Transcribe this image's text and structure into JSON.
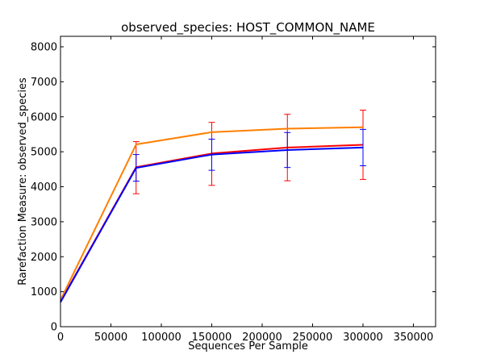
{
  "chart_data": {
    "type": "line",
    "title": "observed_species: HOST_COMMON_NAME",
    "xlabel": "Sequences Per Sample",
    "ylabel": "Rarefaction Measure: observed_species",
    "xlim": [
      0,
      372000
    ],
    "ylim": [
      0,
      8300
    ],
    "xticks": [
      0,
      50000,
      100000,
      150000,
      200000,
      250000,
      300000,
      350000
    ],
    "yticks": [
      0,
      1000,
      2000,
      3000,
      4000,
      5000,
      6000,
      7000,
      8000
    ],
    "grid": false,
    "legend": "none",
    "series": [
      {
        "color": "#ff0000",
        "errorbar_color": "#ff0000",
        "x": [
          1,
          75000,
          150000,
          225000,
          300000
        ],
        "y": [
          720,
          4560,
          4950,
          5120,
          5200
        ],
        "yerr_low": [
          720,
          3800,
          4040,
          4170,
          4210
        ],
        "yerr_high": [
          720,
          5290,
          5840,
          6070,
          6190
        ]
      },
      {
        "color": "#ff7f00",
        "errorbar_color": "#ff7f00",
        "x": [
          1,
          75000,
          150000,
          225000,
          300000
        ],
        "y": [
          760,
          5210,
          5560,
          5660,
          5700
        ],
        "yerr_low": [
          760,
          5210,
          5560,
          5660,
          5700
        ],
        "yerr_high": [
          760,
          5210,
          5560,
          5660,
          5700
        ]
      },
      {
        "color": "#0000ff",
        "errorbar_color": "#0000ff",
        "x": [
          1,
          75000,
          150000,
          225000,
          300000
        ],
        "y": [
          700,
          4540,
          4920,
          5050,
          5120
        ],
        "yerr_low": [
          700,
          4160,
          4470,
          4550,
          4600
        ],
        "yerr_high": [
          700,
          4920,
          5360,
          5550,
          5640
        ]
      }
    ]
  }
}
